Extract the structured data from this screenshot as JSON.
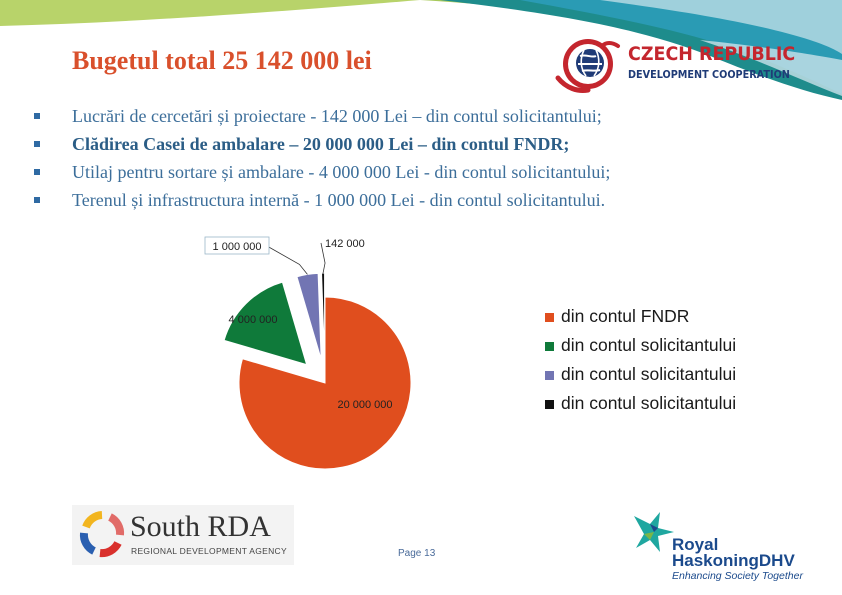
{
  "title": "Bugetul total 25 142 000 lei",
  "partner_logo": {
    "line1": "CZECH REPUBLIC",
    "line2": "DEVELOPMENT COOPERATION",
    "colors": {
      "red": "#c4262e",
      "navy": "#1f3b77"
    }
  },
  "bullets": [
    {
      "text": "Lucrări de cercetări și proiectare - 142 000 Lei – din contul solicitantului;",
      "bold": false
    },
    {
      "text": "Clădirea Casei de ambalare – 20 000 000 Lei – din contul FNDR;",
      "bold": true
    },
    {
      "text": "Utilaj pentru sortare și ambalare - 4 000 000 Lei - din contul solicitantului;",
      "bold": false
    },
    {
      "text": "Terenul și infrastructura internă - 1 000 000 Lei - din contul solicitantului.",
      "bold": false
    }
  ],
  "chart_data": {
    "type": "pie",
    "exploded": true,
    "legend_position": "right",
    "slices": [
      {
        "label": "20 000 000",
        "value": 20000000,
        "legend": "din contul FNDR",
        "color": "#e04e1e"
      },
      {
        "label": "4 000 000",
        "value": 4000000,
        "legend": "din contul solicitantului",
        "color": "#0f7a3a"
      },
      {
        "label": "1 000 000",
        "value": 1000000,
        "legend": "din contul solicitantului",
        "color": "#7275b3"
      },
      {
        "label": "142 000",
        "value": 142000,
        "legend": "din contul solicitantului",
        "color": "#111111"
      }
    ]
  },
  "footer": {
    "page": "Page 13",
    "rda_name": "South RDA",
    "rda_sub": "REGIONAL DEVELOPMENT AGENCY",
    "rh_line1": "Royal",
    "rh_line2": "HaskoningDHV",
    "rh_tagline": "Enhancing Society Together"
  }
}
